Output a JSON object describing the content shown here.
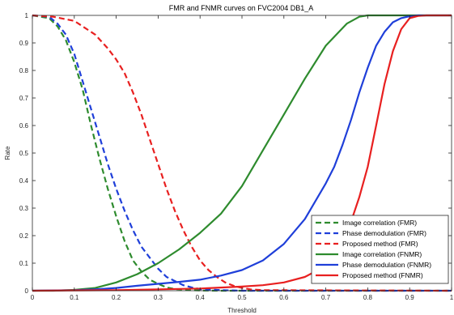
{
  "chart_data": {
    "type": "line",
    "title": "FMR and FNMR curves on FVC2004 DB1_A",
    "xlabel": "Threshold",
    "ylabel": "Rate",
    "xlim": [
      0,
      1
    ],
    "ylim": [
      0,
      1
    ],
    "xticks": [
      "0",
      "0.1",
      "0.2",
      "0.3",
      "0.4",
      "0.5",
      "0.6",
      "0.7",
      "0.8",
      "0.9",
      "1"
    ],
    "yticks": [
      "0",
      "0.1",
      "0.2",
      "0.3",
      "0.4",
      "0.5",
      "0.6",
      "0.7",
      "0.8",
      "0.9",
      "1"
    ],
    "grid": false,
    "legend_position": "bottom-right",
    "series": [
      {
        "name": "Image correlation (FMR)",
        "color": "#2e8b2e",
        "dash": "dashed",
        "x": [
          0,
          0.04,
          0.06,
          0.08,
          0.1,
          0.12,
          0.14,
          0.16,
          0.18,
          0.2,
          0.22,
          0.24,
          0.26,
          0.28,
          0.3,
          0.32,
          0.34,
          0.37,
          0.4,
          0.45,
          0.5,
          1
        ],
        "y": [
          1,
          0.99,
          0.96,
          0.91,
          0.83,
          0.73,
          0.6,
          0.48,
          0.37,
          0.27,
          0.18,
          0.11,
          0.07,
          0.04,
          0.025,
          0.012,
          0.006,
          0.003,
          0.001,
          0,
          0,
          0
        ]
      },
      {
        "name": "Phase demodulation (FMR)",
        "color": "#1f3fd9",
        "dash": "dashed",
        "x": [
          0,
          0.04,
          0.06,
          0.08,
          0.1,
          0.12,
          0.14,
          0.16,
          0.18,
          0.2,
          0.22,
          0.24,
          0.26,
          0.28,
          0.3,
          0.32,
          0.34,
          0.36,
          0.38,
          0.4,
          0.45,
          0.5,
          1
        ],
        "y": [
          1,
          0.995,
          0.97,
          0.93,
          0.86,
          0.76,
          0.66,
          0.56,
          0.46,
          0.37,
          0.29,
          0.22,
          0.16,
          0.12,
          0.08,
          0.05,
          0.035,
          0.02,
          0.012,
          0.006,
          0.002,
          0,
          0
        ]
      },
      {
        "name": "Proposed method (FMR)",
        "color": "#e82020",
        "dash": "dashed",
        "x": [
          0,
          0.05,
          0.1,
          0.15,
          0.18,
          0.2,
          0.22,
          0.24,
          0.26,
          0.28,
          0.3,
          0.32,
          0.34,
          0.36,
          0.38,
          0.4,
          0.42,
          0.44,
          0.46,
          0.48,
          0.5,
          0.52,
          0.55,
          1
        ],
        "y": [
          1,
          0.995,
          0.98,
          0.93,
          0.88,
          0.84,
          0.79,
          0.72,
          0.64,
          0.55,
          0.46,
          0.37,
          0.29,
          0.22,
          0.16,
          0.11,
          0.075,
          0.05,
          0.03,
          0.018,
          0.01,
          0.005,
          0.002,
          0
        ]
      },
      {
        "name": "Image correlation (FNMR)",
        "color": "#2e8b2e",
        "dash": "solid",
        "x": [
          0,
          0.05,
          0.1,
          0.15,
          0.2,
          0.25,
          0.3,
          0.35,
          0.4,
          0.45,
          0.5,
          0.55,
          0.6,
          0.65,
          0.7,
          0.75,
          0.78,
          0.8,
          0.85,
          0.9,
          1
        ],
        "y": [
          0,
          0,
          0.003,
          0.01,
          0.03,
          0.06,
          0.1,
          0.15,
          0.21,
          0.28,
          0.38,
          0.51,
          0.64,
          0.77,
          0.89,
          0.97,
          0.995,
          1,
          1,
          1,
          1
        ]
      },
      {
        "name": "Phase demodulation (FNMR)",
        "color": "#1f3fd9",
        "dash": "solid",
        "x": [
          0,
          0.1,
          0.15,
          0.2,
          0.25,
          0.3,
          0.35,
          0.4,
          0.45,
          0.5,
          0.55,
          0.6,
          0.65,
          0.7,
          0.72,
          0.74,
          0.76,
          0.78,
          0.8,
          0.82,
          0.84,
          0.86,
          0.88,
          0.9,
          0.92,
          1
        ],
        "y": [
          0,
          0.002,
          0.005,
          0.01,
          0.018,
          0.025,
          0.032,
          0.04,
          0.055,
          0.075,
          0.11,
          0.17,
          0.26,
          0.39,
          0.45,
          0.53,
          0.62,
          0.72,
          0.81,
          0.89,
          0.94,
          0.975,
          0.99,
          0.997,
          1,
          1
        ]
      },
      {
        "name": "Proposed method (FNMR)",
        "color": "#e82020",
        "dash": "solid",
        "x": [
          0,
          0.2,
          0.3,
          0.4,
          0.5,
          0.55,
          0.6,
          0.65,
          0.7,
          0.72,
          0.74,
          0.76,
          0.78,
          0.8,
          0.82,
          0.84,
          0.86,
          0.88,
          0.9,
          0.92,
          0.94,
          1
        ],
        "y": [
          0,
          0.002,
          0.005,
          0.008,
          0.015,
          0.02,
          0.03,
          0.05,
          0.09,
          0.13,
          0.18,
          0.25,
          0.34,
          0.45,
          0.6,
          0.75,
          0.87,
          0.95,
          0.99,
          0.998,
          1,
          1
        ]
      }
    ]
  }
}
